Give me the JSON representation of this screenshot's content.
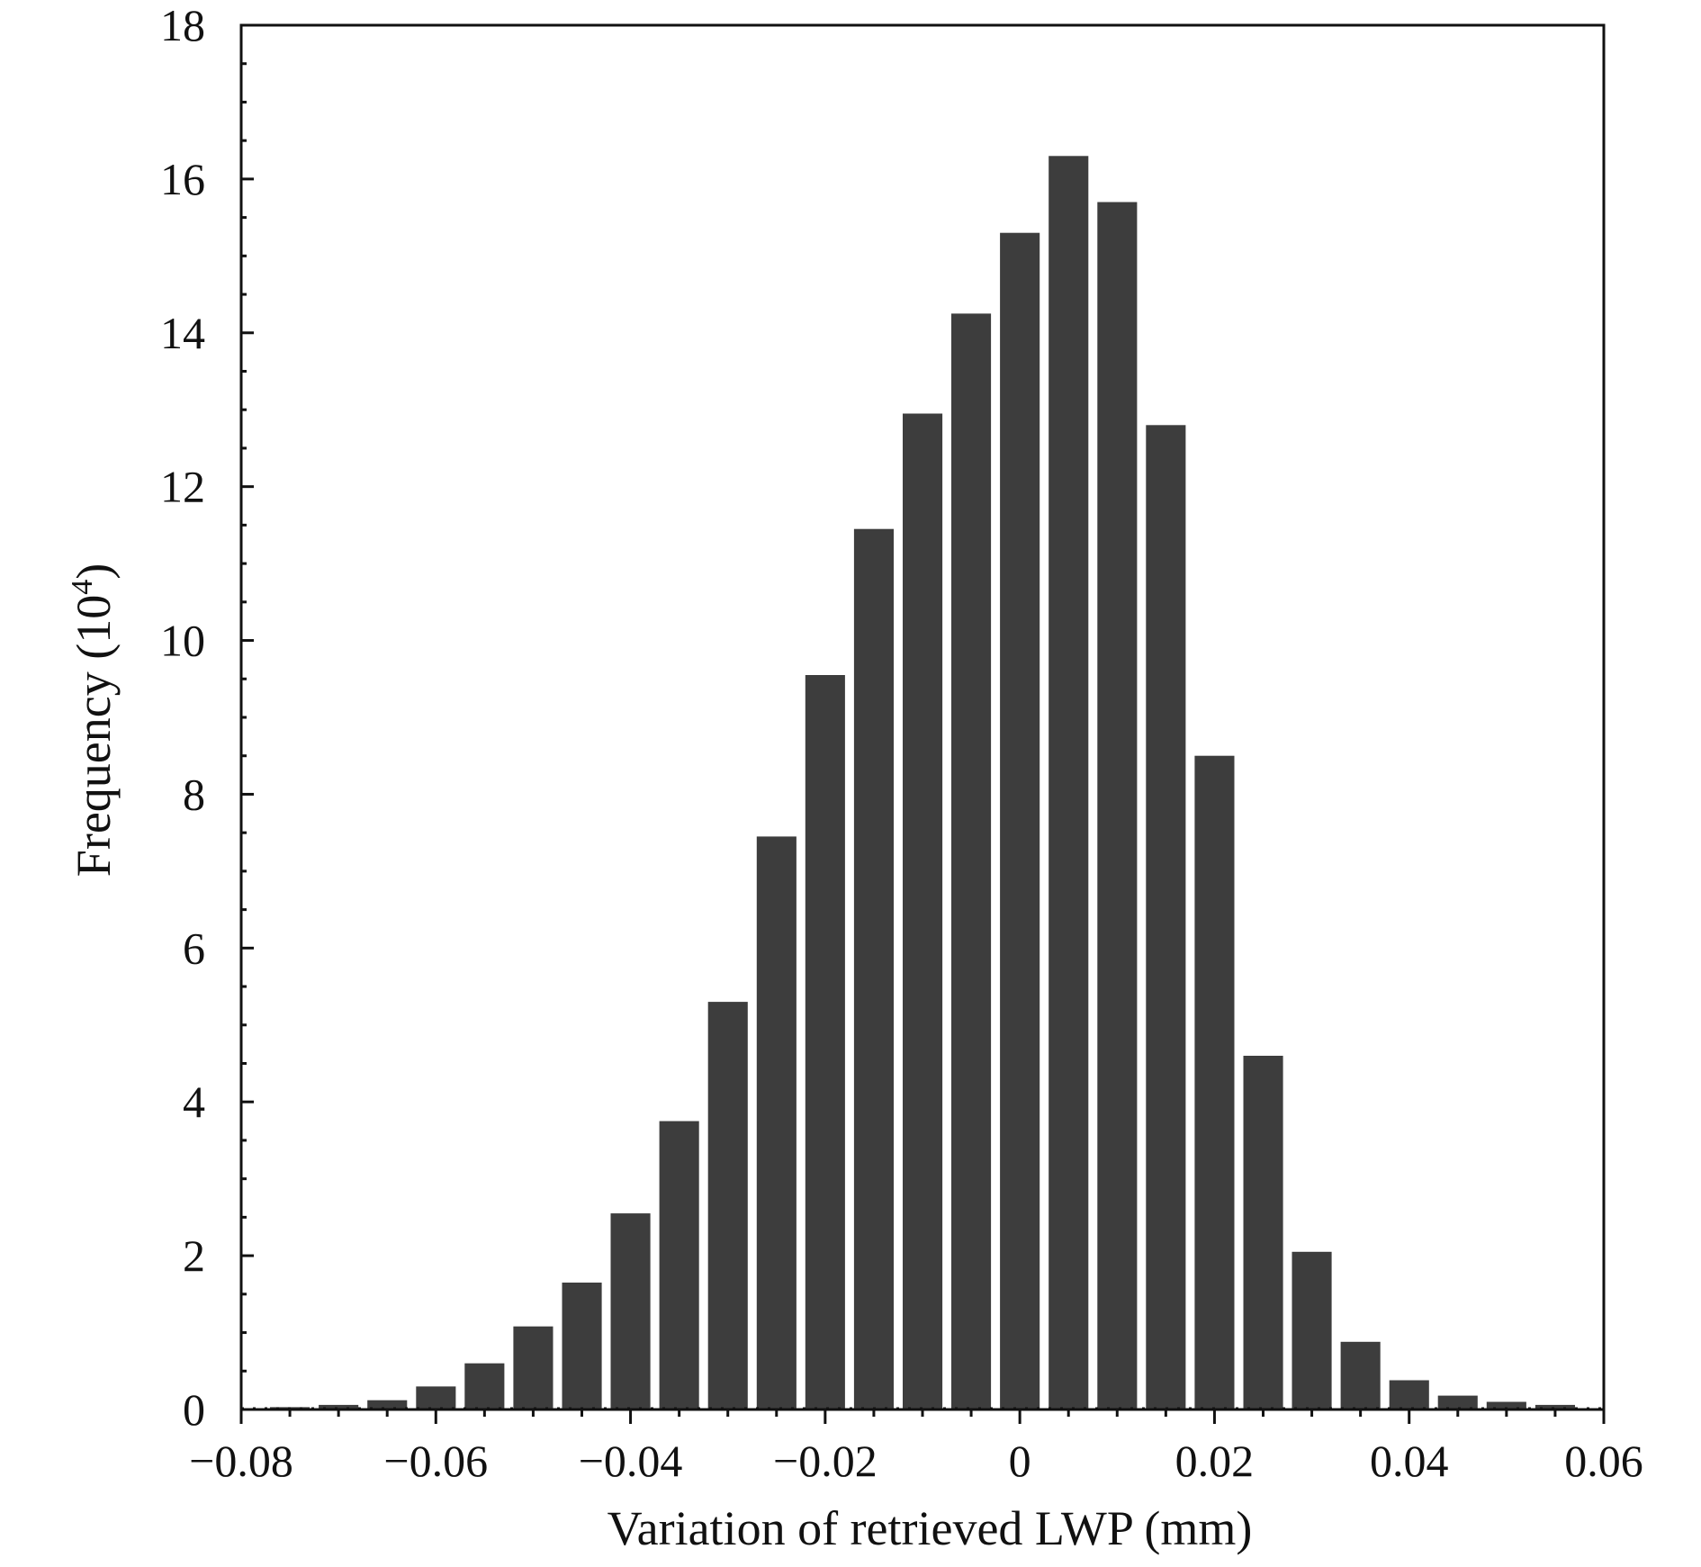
{
  "chart_data": {
    "type": "bar",
    "title": "",
    "xlabel": "Variation of retrieved LWP (mm)",
    "ylabel": "Frequency (10",
    "ylabel_superscript": "4",
    "ylabel_suffix": ")",
    "xlim": [
      -0.08,
      0.06
    ],
    "ylim": [
      0,
      18
    ],
    "bin_width": 0.005,
    "x_ticks": [
      -0.08,
      -0.06,
      -0.04,
      -0.02,
      0,
      0.02,
      0.04,
      0.06
    ],
    "x_tick_labels": [
      "−0.08",
      "−0.06",
      "−0.04",
      "−0.02",
      "0",
      "0.02",
      "0.04",
      "0.06"
    ],
    "y_ticks": [
      0,
      2,
      4,
      6,
      8,
      10,
      12,
      14,
      16,
      18
    ],
    "y_tick_labels": [
      "0",
      "2",
      "4",
      "6",
      "8",
      "10",
      "12",
      "14",
      "16",
      "18"
    ],
    "bar_color": "#3d3d3d",
    "grid": false,
    "legend": "none",
    "x": [
      -0.075,
      -0.07,
      -0.065,
      -0.06,
      -0.055,
      -0.05,
      -0.045,
      -0.04,
      -0.035,
      -0.03,
      -0.025,
      -0.02,
      -0.015,
      -0.01,
      -0.005,
      0,
      0.005,
      0.01,
      0.015,
      0.02,
      0.025,
      0.03,
      0.035,
      0.04,
      0.045,
      0.05,
      0.055
    ],
    "values": [
      0.03,
      0.06,
      0.12,
      0.3,
      0.6,
      1.08,
      1.65,
      2.55,
      3.75,
      5.3,
      7.45,
      9.55,
      11.45,
      12.95,
      14.25,
      15.3,
      16.3,
      15.7,
      12.8,
      8.5,
      4.6,
      2.05,
      0.88,
      0.38,
      0.18,
      0.1,
      0.06
    ]
  }
}
